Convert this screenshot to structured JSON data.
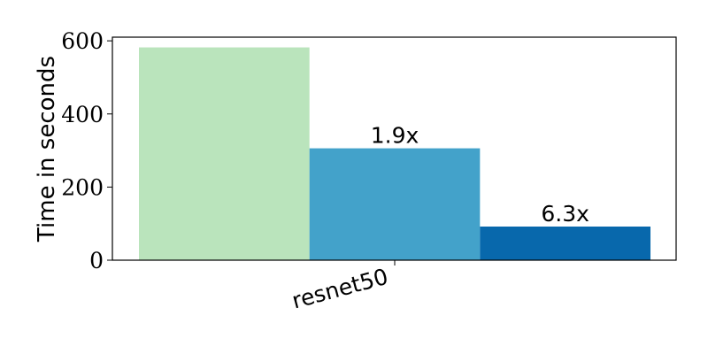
{
  "chart_data": {
    "type": "bar",
    "categories": [
      "resnet50"
    ],
    "series": [
      {
        "values": [
          582
        ],
        "color": "#bae4bc",
        "label": ""
      },
      {
        "values": [
          306
        ],
        "color": "#43a2ca",
        "label": "1.9x"
      },
      {
        "values": [
          92
        ],
        "color": "#0868ac",
        "label": "6.3x"
      }
    ],
    "ylabel": "Time in seconds",
    "xlabel": "",
    "ylim": [
      0,
      610
    ],
    "yticks": [
      0,
      200,
      400,
      600
    ],
    "grid": false
  }
}
